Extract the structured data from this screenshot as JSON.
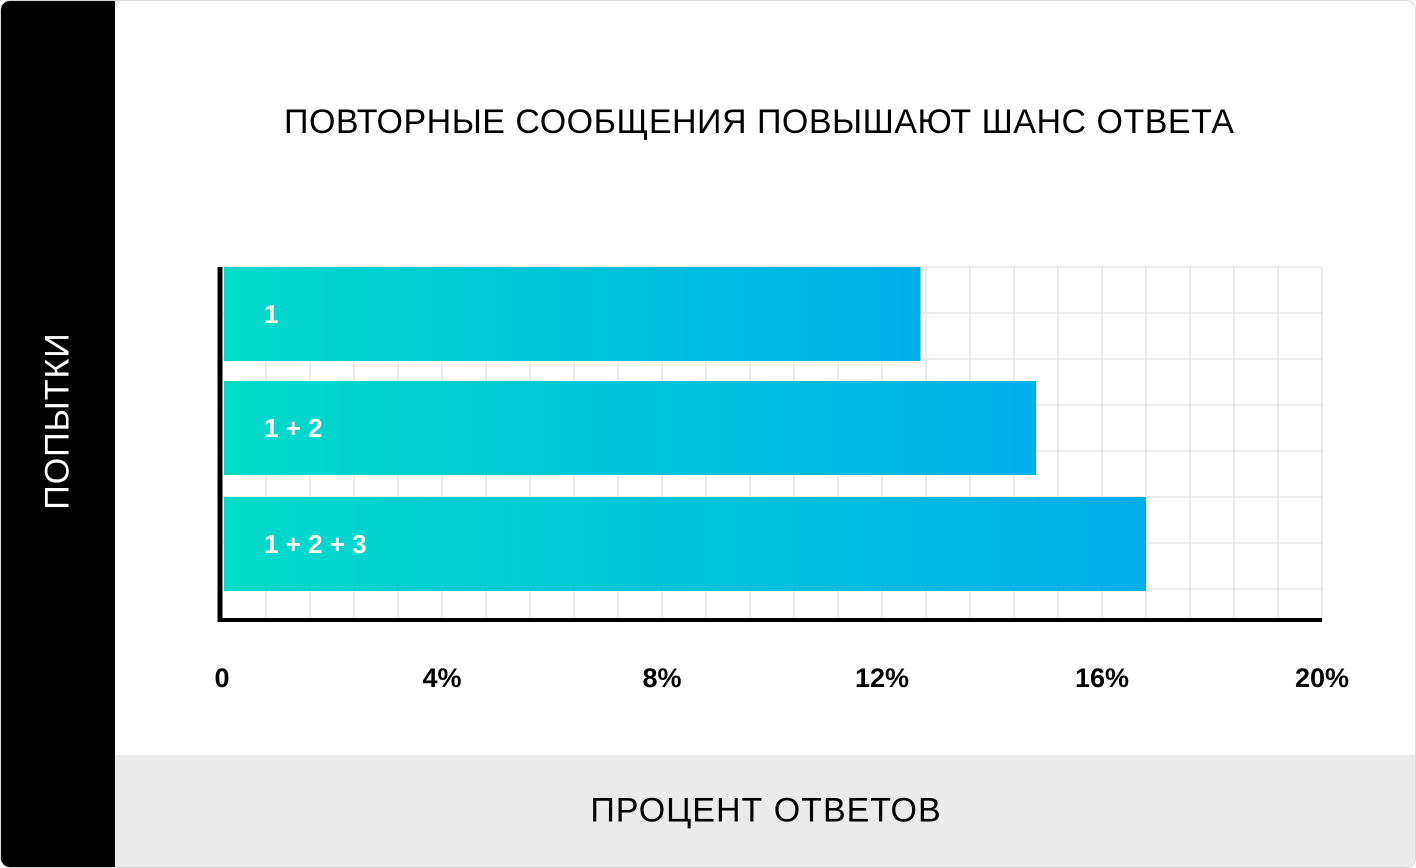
{
  "chart_data": {
    "type": "bar",
    "orientation": "horizontal",
    "title": "ПОВТОРНЫЕ СООБЩЕНИЯ ПОВЫШАЮТ ШАНС ОТВЕТА",
    "xlabel": "ПРОЦЕНТ ОТВЕТОВ",
    "ylabel": "ПОПЫТКИ",
    "categories": [
      "1",
      "1 + 2",
      "1 + 2 + 3"
    ],
    "values": [
      12.7,
      14.8,
      16.8
    ],
    "xlim": [
      0,
      20
    ],
    "x_ticks": [
      0,
      4,
      8,
      12,
      16,
      20
    ],
    "x_tick_labels": [
      "0",
      "4%",
      "8%",
      "12%",
      "16%",
      "20%"
    ],
    "grid": true,
    "colors": {
      "bar_start": "#00dbc9",
      "bar_end": "#00aeea",
      "grid": "#e6e6e6",
      "axis": "#000000",
      "y_band": "#000000",
      "x_band": "#ebebeb"
    }
  }
}
